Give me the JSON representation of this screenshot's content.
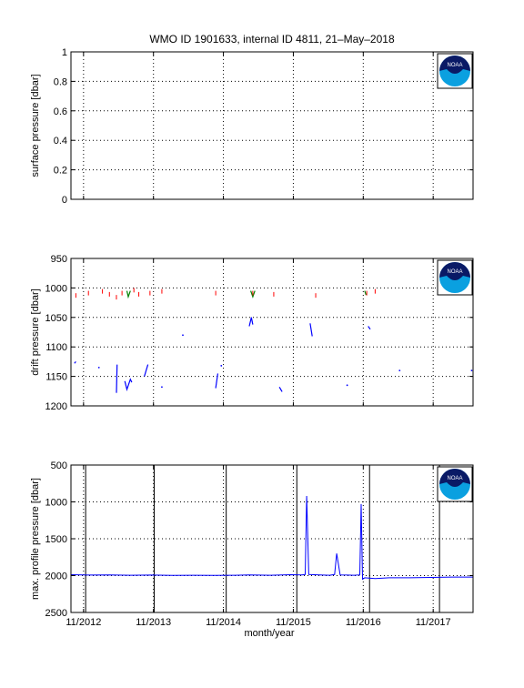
{
  "title": "WMO ID 1901633, internal ID 4811, 21–May–2018",
  "logo_text": "NOAA",
  "colors": {
    "series_blue": "#0000ff",
    "drift_green": "#008000",
    "drift_red": "#ff0000",
    "grid": "#000000",
    "noaa_navy": "#0a1a66",
    "noaa_cyan": "#0aa0e0"
  },
  "chart_data": [
    {
      "type": "line",
      "ylabel": "surface pressure [dbar]",
      "ylim": [
        0,
        1
      ],
      "yticks": [
        "0",
        "0.2",
        "0.4",
        "0.6",
        "0.8",
        "1"
      ],
      "xlim": [
        2012.65,
        2018.4
      ],
      "xtick_values": [
        2012.83,
        2013.83,
        2014.83,
        2015.83,
        2016.83,
        2017.83
      ],
      "grid": true,
      "legend": "none",
      "series": []
    },
    {
      "type": "scatter",
      "ylabel": "drift pressure [dbar]",
      "ylim": [
        950,
        1200
      ],
      "y_reversed": true,
      "yticks": [
        "950",
        "1000",
        "1050",
        "1100",
        "1150",
        "1200"
      ],
      "xlim": [
        2012.65,
        2018.4
      ],
      "xtick_values": [
        2012.83,
        2013.83,
        2014.83,
        2015.83,
        2016.83,
        2017.83
      ],
      "grid": true,
      "series": [
        {
          "color": "blue",
          "segments": [
            [
              [
                2012.7,
                1128
              ],
              [
                2012.72,
                1125
              ]
            ],
            [
              [
                2013.3,
                1178
              ],
              [
                2013.31,
                1130
              ]
            ],
            [
              [
                2013.42,
                1158
              ],
              [
                2013.45,
                1172
              ],
              [
                2013.5,
                1155
              ],
              [
                2013.52,
                1160
              ]
            ],
            [
              [
                2013.7,
                1150
              ],
              [
                2013.75,
                1130
              ]
            ],
            [
              [
                2014.72,
                1170
              ],
              [
                2014.75,
                1145
              ]
            ],
            [
              [
                2015.2,
                1065
              ],
              [
                2015.23,
                1050
              ],
              [
                2015.25,
                1062
              ]
            ],
            [
              [
                2015.63,
                1168
              ],
              [
                2015.67,
                1176
              ]
            ],
            [
              [
                2016.07,
                1060
              ],
              [
                2016.1,
                1082
              ]
            ],
            [
              [
                2016.9,
                1065
              ],
              [
                2016.93,
                1070
              ]
            ]
          ]
        },
        {
          "color": "green",
          "segments": [
            [
              [
                2013.45,
                1005
              ],
              [
                2013.47,
                1015
              ],
              [
                2013.5,
                1005
              ]
            ],
            [
              [
                2015.22,
                1005
              ],
              [
                2015.25,
                1015
              ],
              [
                2015.28,
                1005
              ]
            ],
            [
              [
                2016.85,
                1005
              ],
              [
                2016.87,
                1012
              ]
            ]
          ]
        },
        {
          "color": "red",
          "points": [
            [
              2012.72,
              1012
            ],
            [
              2012.9,
              1008
            ],
            [
              2013.1,
              1005
            ],
            [
              2013.2,
              1010
            ],
            [
              2013.3,
              1015
            ],
            [
              2013.38,
              1008
            ],
            [
              2013.55,
              1003
            ],
            [
              2013.62,
              1010
            ],
            [
              2013.78,
              1008
            ],
            [
              2013.95,
              1005
            ],
            [
              2014.72,
              1008
            ],
            [
              2015.25,
              1008
            ],
            [
              2015.55,
              1010
            ],
            [
              2016.15,
              1012
            ],
            [
              2016.88,
              1008
            ],
            [
              2017.0,
              1005
            ]
          ]
        },
        {
          "color": "blue_dots",
          "points": [
            [
              2013.05,
              1135
            ],
            [
              2013.95,
              1168
            ],
            [
              2014.25,
              1080
            ],
            [
              2014.8,
              1132
            ],
            [
              2016.6,
              1165
            ],
            [
              2017.35,
              1140
            ],
            [
              2018.38,
              1140
            ]
          ]
        }
      ]
    },
    {
      "type": "line",
      "ylabel": "max. profile pressure [dbar]",
      "xlabel": "month/year",
      "ylim": [
        500,
        2500
      ],
      "y_reversed": true,
      "yticks": [
        "500",
        "1000",
        "1500",
        "2000",
        "2500"
      ],
      "xlim": [
        2012.65,
        2018.4
      ],
      "xtick_values": [
        2012.83,
        2013.83,
        2014.83,
        2015.83,
        2016.83,
        2017.83
      ],
      "xticklabels": [
        "11/2012",
        "11/2013",
        "11/2014",
        "11/2015",
        "11/2016",
        "11/2017"
      ],
      "vertical_lines": [
        2012.86,
        2013.84,
        2014.87,
        2015.88,
        2016.92,
        2017.92
      ],
      "grid": true,
      "series": [
        {
          "color": "blue",
          "points": [
            [
              2012.65,
              1988
            ],
            [
              2012.9,
              1992
            ],
            [
              2013.2,
              1990
            ],
            [
              2013.5,
              1995
            ],
            [
              2013.8,
              1992
            ],
            [
              2014.1,
              1998
            ],
            [
              2014.4,
              1995
            ],
            [
              2014.7,
              1998
            ],
            [
              2015.0,
              1995
            ],
            [
              2015.2,
              1990
            ],
            [
              2015.5,
              1995
            ],
            [
              2015.8,
              1988
            ],
            [
              2015.95,
              1990
            ],
            [
              2016.0,
              1985
            ],
            [
              2016.02,
              920
            ],
            [
              2016.05,
              1985
            ],
            [
              2016.2,
              1990
            ],
            [
              2016.35,
              1995
            ],
            [
              2016.42,
              1985
            ],
            [
              2016.45,
              1700
            ],
            [
              2016.5,
              1990
            ],
            [
              2016.7,
              1995
            ],
            [
              2016.78,
              1990
            ],
            [
              2016.8,
              1030
            ],
            [
              2016.82,
              2050
            ],
            [
              2016.85,
              2030
            ],
            [
              2017.0,
              2040
            ],
            [
              2017.2,
              2030
            ],
            [
              2017.5,
              2030
            ],
            [
              2017.8,
              2025
            ],
            [
              2018.1,
              2020
            ],
            [
              2018.4,
              2020
            ]
          ]
        }
      ]
    }
  ]
}
